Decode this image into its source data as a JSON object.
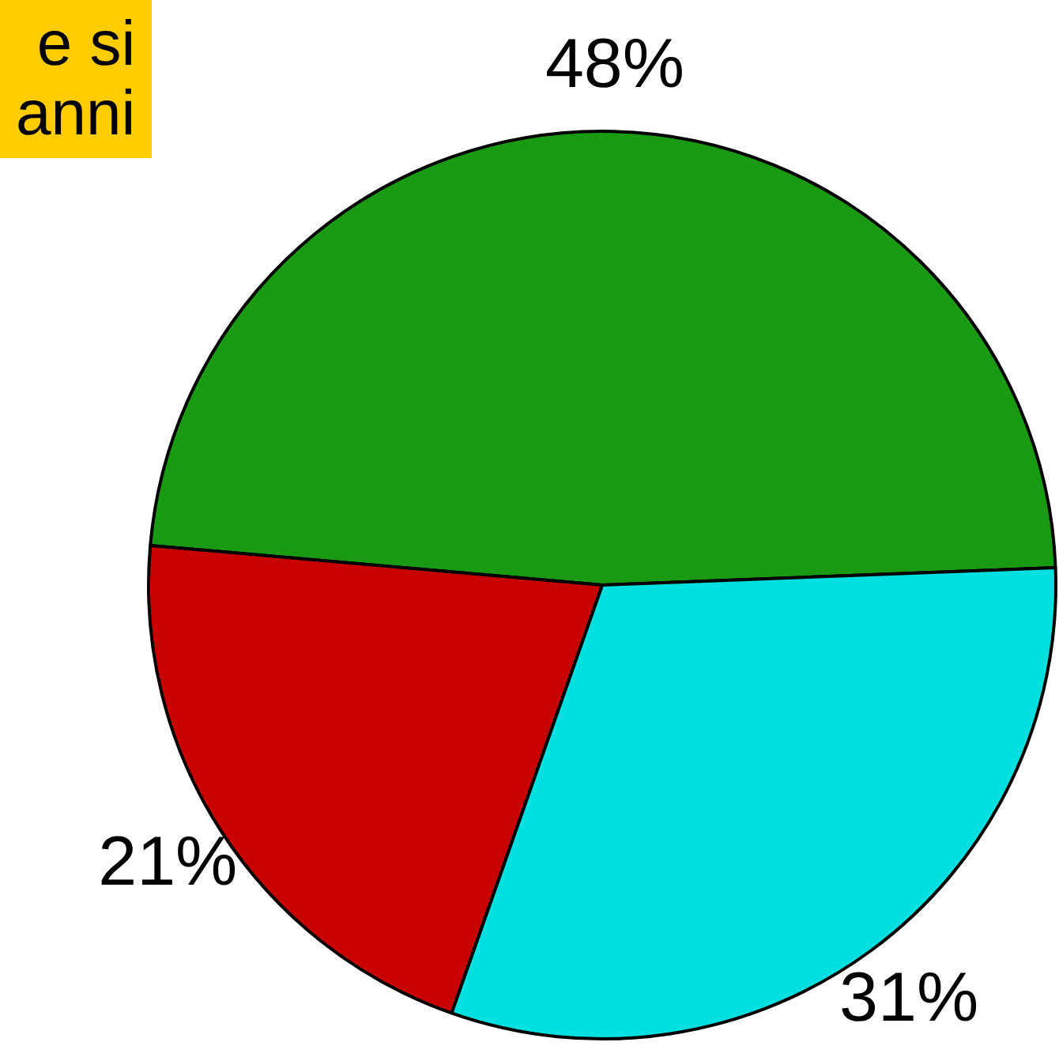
{
  "chart_data": {
    "type": "pie",
    "annotations": [
      "e si\nanni"
    ],
    "categories": [
      null,
      null,
      null
    ],
    "values": [
      48,
      31,
      21
    ],
    "colors": [
      "#1a9a12",
      "#00e0e0",
      "#c80000"
    ],
    "value_labels": [
      "48%",
      "31%",
      "21%"
    ]
  }
}
